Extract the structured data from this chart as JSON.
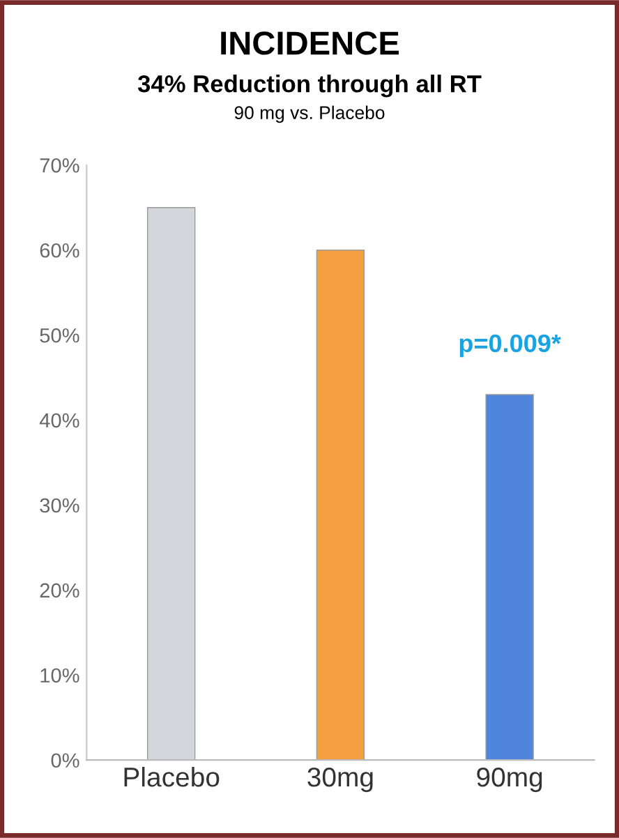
{
  "chart_data": {
    "type": "bar",
    "title": "INCIDENCE",
    "subtitle": "34% Reduction through all RT",
    "annotations": [
      "90 mg vs. Placebo",
      {
        "text": "p=0.009*",
        "x": "90mg",
        "y": 43
      }
    ],
    "categories": [
      "Placebo",
      "30mg",
      "90mg"
    ],
    "values": [
      65,
      60,
      43
    ],
    "colors": [
      "#d3d6da",
      "#f4a042",
      "#4f86dc"
    ],
    "ylim": [
      0,
      70
    ],
    "yticks": [
      {
        "value": 0,
        "label": "0%"
      },
      {
        "value": 10,
        "label": "10%"
      },
      {
        "value": 20,
        "label": "20%"
      },
      {
        "value": 30,
        "label": "30%"
      },
      {
        "value": 40,
        "label": "40%"
      },
      {
        "value": 50,
        "label": "50%"
      },
      {
        "value": 60,
        "label": "60%"
      },
      {
        "value": 70,
        "label": "70%"
      }
    ],
    "grid": false
  }
}
